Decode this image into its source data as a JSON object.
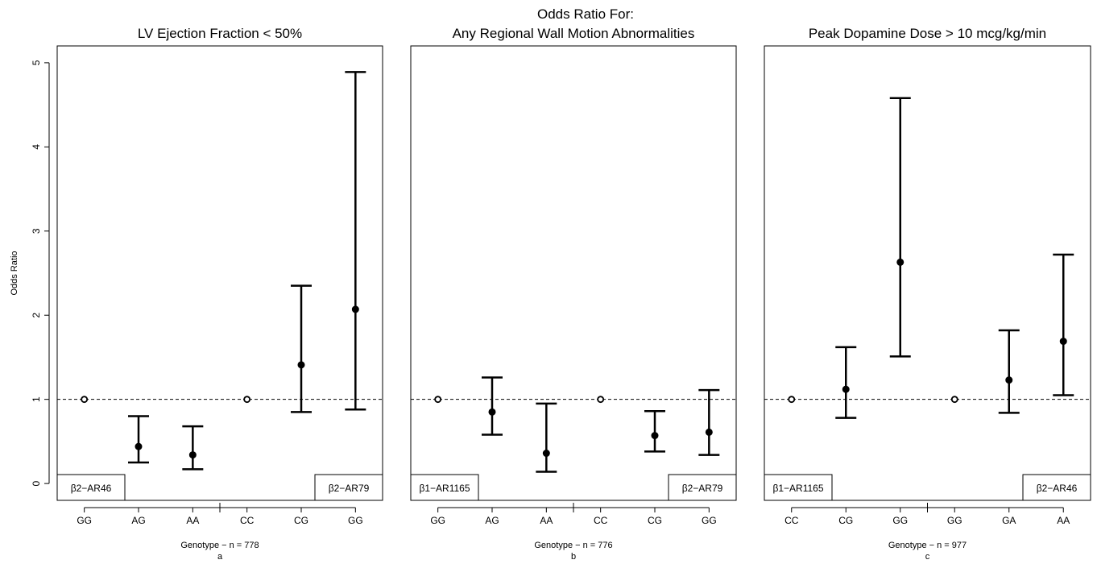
{
  "figure": {
    "supertitle": "Odds Ratio For:",
    "ylabel": "Odds Ratio"
  },
  "chart_data": [
    {
      "type": "scatter",
      "title": "LV Ejection Fraction < 50%",
      "xlabel": "Genotype − n = 778",
      "sublabel": "a",
      "categories": [
        "GG",
        "AG",
        "AA",
        "CC",
        "CG",
        "GG"
      ],
      "ylim": [
        -0.2,
        5.2
      ],
      "yticks": [
        0,
        1,
        2,
        3,
        4,
        5
      ],
      "reference_line": 1,
      "groups": [
        {
          "label": "β2−AR46",
          "label_position": "bottom-left",
          "start": 0,
          "end": 2
        },
        {
          "label": "β2−AR79",
          "label_position": "bottom-right",
          "start": 3,
          "end": 5
        }
      ],
      "estimates": [
        1.0,
        0.44,
        0.34,
        1.0,
        1.41,
        2.07
      ],
      "lower": [
        null,
        0.25,
        0.17,
        null,
        0.85,
        0.88
      ],
      "upper": [
        null,
        0.8,
        0.68,
        null,
        2.35,
        4.89
      ],
      "reference": [
        true,
        false,
        false,
        true,
        false,
        false
      ]
    },
    {
      "type": "scatter",
      "title": "Any Regional Wall Motion Abnormalities",
      "xlabel": "Genotype − n = 776",
      "sublabel": "b",
      "categories": [
        "GG",
        "AG",
        "AA",
        "CC",
        "CG",
        "GG"
      ],
      "ylim": [
        -0.2,
        5.2
      ],
      "yticks": [
        0,
        1,
        2,
        3,
        4,
        5
      ],
      "reference_line": 1,
      "groups": [
        {
          "label": "β1−AR1165",
          "label_position": "bottom-left",
          "start": 0,
          "end": 2
        },
        {
          "label": "β2−AR79",
          "label_position": "bottom-right",
          "start": 3,
          "end": 5
        }
      ],
      "estimates": [
        1.0,
        0.85,
        0.36,
        1.0,
        0.57,
        0.61
      ],
      "lower": [
        null,
        0.58,
        0.14,
        null,
        0.38,
        0.34
      ],
      "upper": [
        null,
        1.26,
        0.95,
        null,
        0.86,
        1.11
      ],
      "reference": [
        true,
        false,
        false,
        true,
        false,
        false
      ]
    },
    {
      "type": "scatter",
      "title": "Peak Dopamine Dose > 10 mcg/kg/min",
      "xlabel": "Genotype − n = 977",
      "sublabel": "c",
      "categories": [
        "CC",
        "CG",
        "GG",
        "GG",
        "GA",
        "AA"
      ],
      "ylim": [
        -0.2,
        5.2
      ],
      "yticks": [
        0,
        1,
        2,
        3,
        4,
        5
      ],
      "reference_line": 1,
      "groups": [
        {
          "label": "β1−AR1165",
          "label_position": "bottom-left",
          "start": 0,
          "end": 2
        },
        {
          "label": "β2−AR46",
          "label_position": "bottom-right",
          "start": 3,
          "end": 5
        }
      ],
      "estimates": [
        1.0,
        1.12,
        2.63,
        1.0,
        1.23,
        1.69
      ],
      "lower": [
        null,
        0.78,
        1.51,
        null,
        0.84,
        1.05
      ],
      "upper": [
        null,
        1.62,
        4.58,
        null,
        1.82,
        2.72
      ],
      "reference": [
        true,
        false,
        false,
        true,
        false,
        false
      ]
    }
  ]
}
